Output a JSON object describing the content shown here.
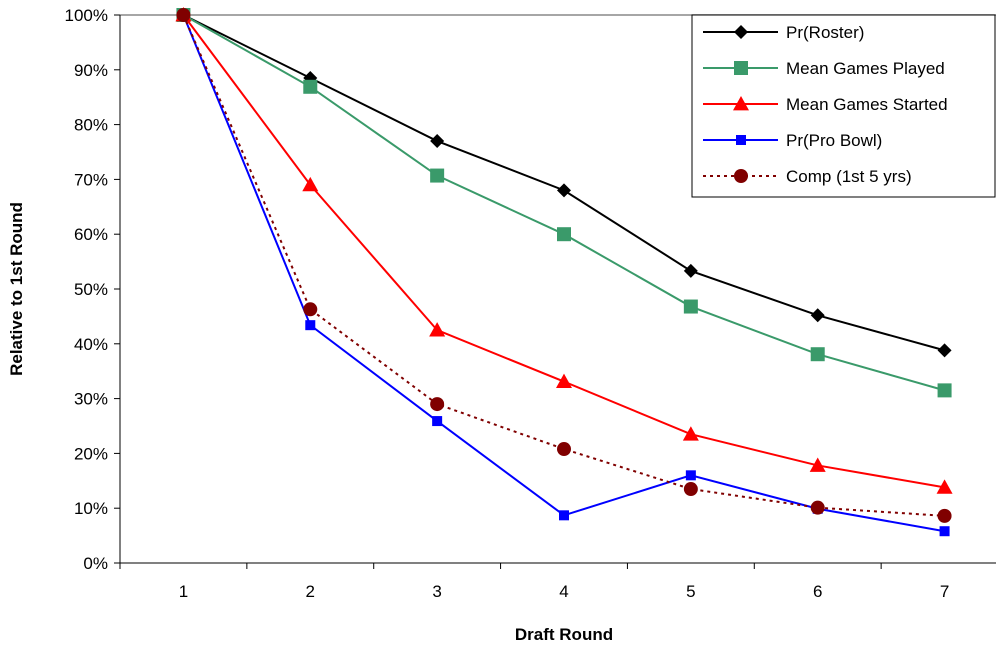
{
  "chart_data": {
    "type": "line",
    "title": "",
    "xlabel": "Draft Round",
    "ylabel": "Relative to 1st Round",
    "categories": [
      "1",
      "2",
      "3",
      "4",
      "5",
      "6",
      "7"
    ],
    "ylim": [
      0,
      100
    ],
    "y_ticks": [
      "0%",
      "10%",
      "20%",
      "30%",
      "40%",
      "50%",
      "60%",
      "70%",
      "80%",
      "90%",
      "100%"
    ],
    "grid": false,
    "legend_position": "top-right",
    "series": [
      {
        "name": "Pr(Roster)",
        "values": [
          100,
          88.5,
          77,
          68,
          53.3,
          45.2,
          38.8
        ],
        "color": "#000000",
        "marker": "diamond",
        "dashed": false
      },
      {
        "name": "Mean Games Played",
        "values": [
          100,
          86.9,
          70.7,
          60,
          46.8,
          38.1,
          31.5
        ],
        "color": "#3a9a6a",
        "marker": "square",
        "dashed": false
      },
      {
        "name": "Mean Games Started",
        "values": [
          100,
          69,
          42.5,
          33.1,
          23.5,
          17.8,
          13.8
        ],
        "color": "#ff0000",
        "marker": "triangle",
        "dashed": false
      },
      {
        "name": "Pr(Pro Bowl)",
        "values": [
          100,
          43.4,
          25.9,
          8.7,
          16,
          9.9,
          5.8
        ],
        "color": "#0000ff",
        "marker": "small-square",
        "dashed": false
      },
      {
        "name": "Comp (1st 5 yrs)",
        "values": [
          100,
          46.3,
          29,
          20.8,
          13.5,
          10.1,
          8.6
        ],
        "color": "#800000",
        "marker": "circle",
        "dashed": true
      }
    ]
  }
}
